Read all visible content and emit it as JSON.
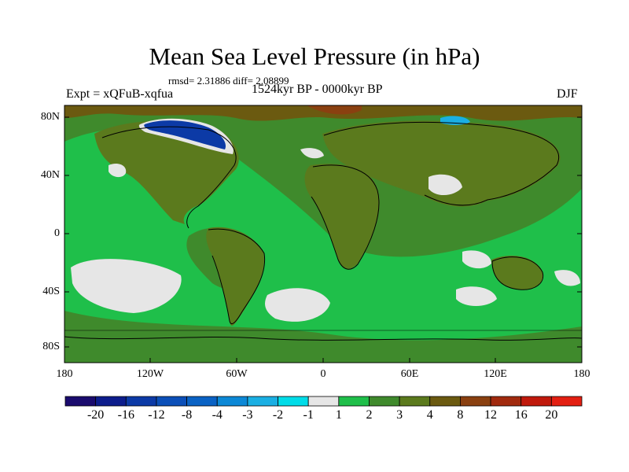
{
  "title": "Mean Sea Level Pressure (in hPa)",
  "stats": "rmsd= 2.31886 diff= 2.08899",
  "experiment": "Expt = xQFuB-xqfua",
  "period": "1524kyr BP - 0000kyr BP",
  "season": "DJF",
  "map": {
    "lat_labels": [
      "80N",
      "40N",
      "0",
      "40S",
      "80S"
    ],
    "lon_labels": [
      "180",
      "120W",
      "60W",
      "0",
      "60E",
      "120E",
      "180"
    ]
  },
  "colorbar": {
    "labels": [
      "-20",
      "-16",
      "-12",
      "-8",
      "-4",
      "-3",
      "-2",
      "-1",
      "1",
      "2",
      "3",
      "4",
      "8",
      "12",
      "16",
      "20"
    ],
    "colors": [
      "#1a0b6e",
      "#0d1d8c",
      "#0c3aa6",
      "#0b4fb8",
      "#0a62c4",
      "#0c88d6",
      "#1aafe3",
      "#00dce8",
      "#e6e6e6",
      "#1fbf4a",
      "#3f8a2c",
      "#5b7a1d",
      "#6b5a10",
      "#8a4010",
      "#a12a0e",
      "#c0190c",
      "#e31f12"
    ]
  },
  "colors": {
    "land_outline": "#000000",
    "ocean_base": "#1fbf4a",
    "land_base": "#5b7a1d"
  }
}
